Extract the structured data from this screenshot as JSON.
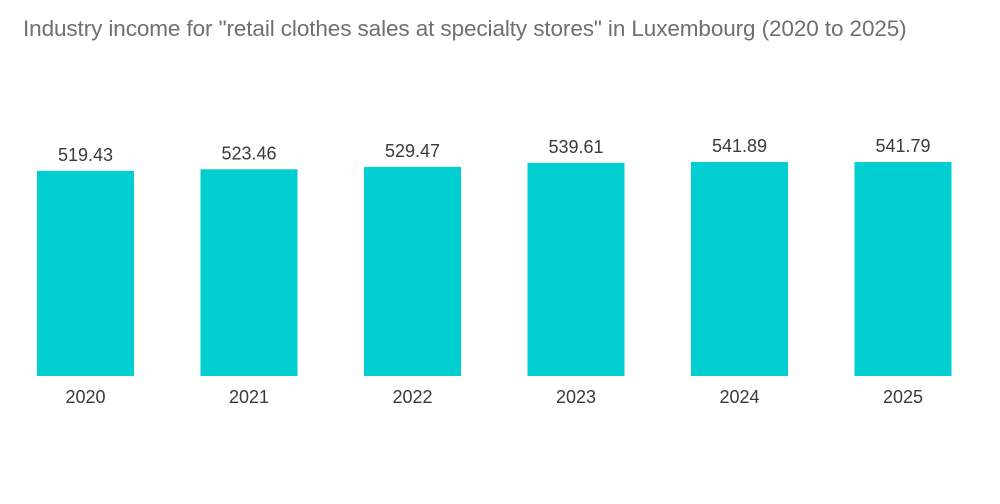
{
  "chart_data": {
    "type": "bar",
    "title": "Industry income for \"retail clothes sales at specialty stores\" in Luxembourg (2020 to 2025)",
    "categories": [
      "2020",
      "2021",
      "2022",
      "2023",
      "2024",
      "2025"
    ],
    "values": [
      519.43,
      523.46,
      529.47,
      539.61,
      541.89,
      541.79
    ],
    "value_labels": [
      "519.43",
      "523.46",
      "529.47",
      "539.61",
      "541.89",
      "541.79"
    ],
    "xlabel": "",
    "ylabel": "",
    "ylim": [
      0,
      541.89
    ],
    "grid": false,
    "legend": "none",
    "bar_color": "#00ced1"
  }
}
